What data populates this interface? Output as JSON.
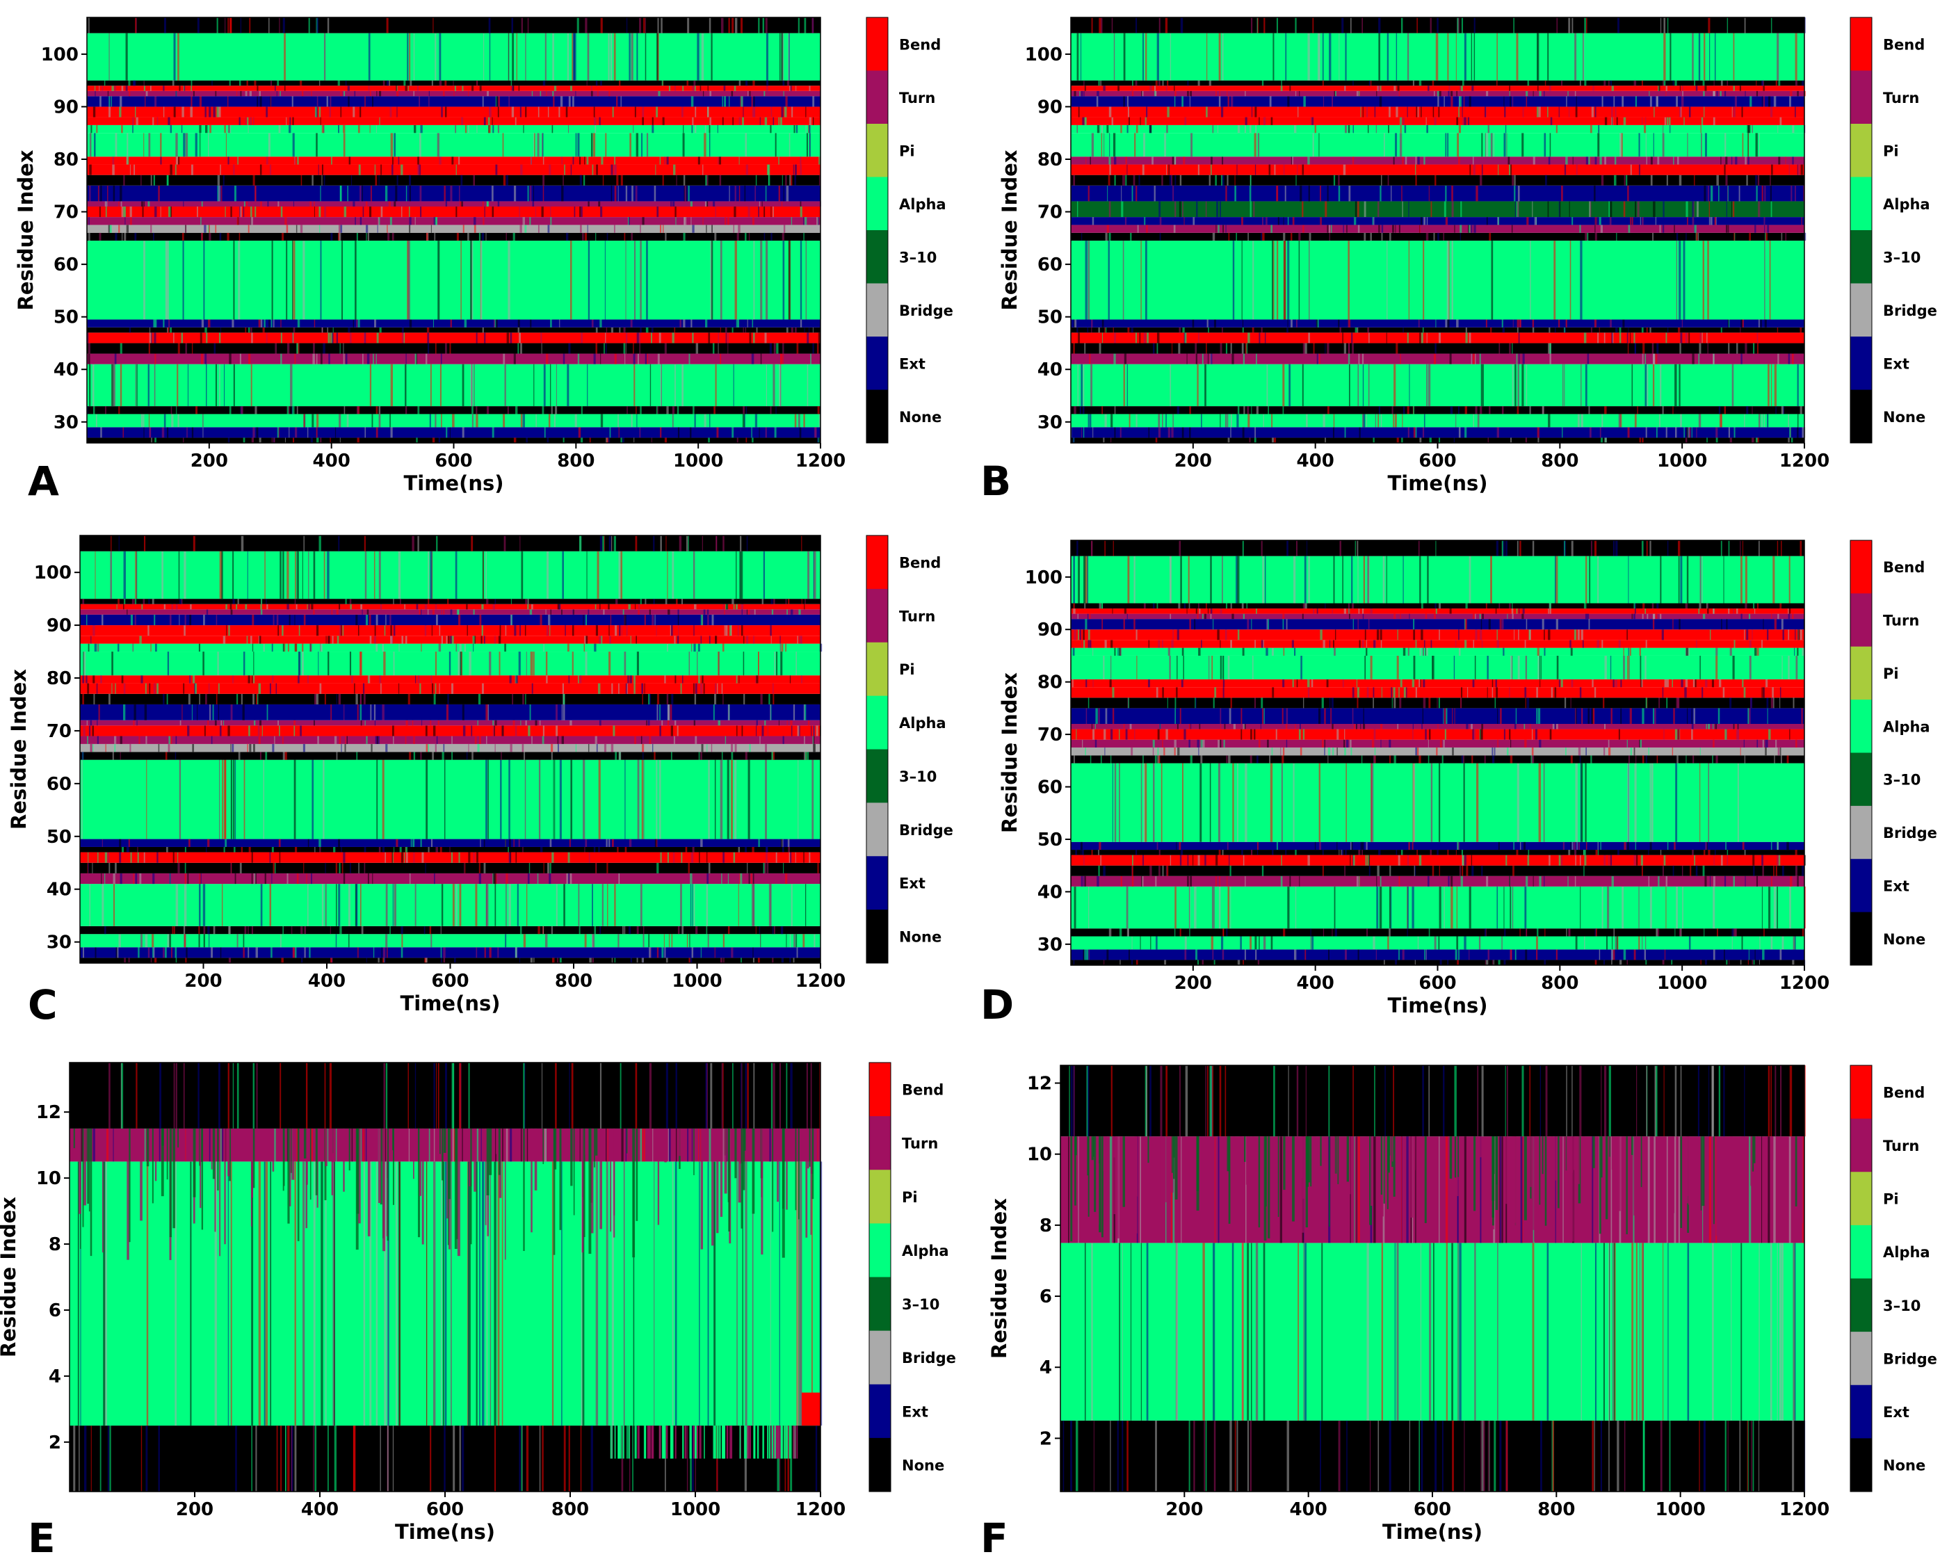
{
  "colors": {
    "Bend": "#ff0000",
    "Turn": "#a01060",
    "Pi": "#a8cc3c",
    "Alpha": "#00ff80",
    "3-10": "#006622",
    "Bridge": "#aaaaaa",
    "Ext": "#00008b",
    "None": "#000000"
  },
  "chart_data": [
    {
      "panel": "A",
      "type": "heatmap",
      "xlabel": "Time(ns)",
      "ylabel": "Residue Index",
      "xlim": [
        0,
        1200
      ],
      "ylim": [
        26,
        107
      ],
      "xticks": [
        200,
        400,
        600,
        800,
        1000,
        1200
      ],
      "yticks": [
        30,
        40,
        50,
        60,
        70,
        80,
        90,
        100
      ],
      "legend": [
        "Bend",
        "Turn",
        "Pi",
        "Alpha",
        "3-10",
        "Bridge",
        "Ext",
        "None"
      ],
      "bands": [
        [
          26,
          27,
          "None"
        ],
        [
          27,
          29,
          "Ext"
        ],
        [
          29,
          31.5,
          "Alpha"
        ],
        [
          31.5,
          33,
          "None"
        ],
        [
          33,
          41,
          "Alpha"
        ],
        [
          41,
          43,
          "Turn"
        ],
        [
          43,
          45,
          "None"
        ],
        [
          45,
          47,
          "Bend"
        ],
        [
          47,
          48,
          "None"
        ],
        [
          48,
          49.5,
          "Ext"
        ],
        [
          49.5,
          64.5,
          "Alpha"
        ],
        [
          64.5,
          66,
          "None"
        ],
        [
          66,
          67.5,
          "Bridge"
        ],
        [
          67.5,
          69,
          "Turn"
        ],
        [
          69,
          71,
          "Bend"
        ],
        [
          71,
          72,
          "Turn"
        ],
        [
          72,
          75,
          "Ext"
        ],
        [
          75,
          77,
          "None"
        ],
        [
          77,
          79,
          "Bend"
        ],
        [
          79,
          80.5,
          "Bend"
        ],
        [
          80.5,
          85,
          "Alpha"
        ],
        [
          85,
          86.5,
          "Alpha"
        ],
        [
          86.5,
          88,
          "Bend"
        ],
        [
          88,
          90,
          "Bend"
        ],
        [
          90,
          92,
          "Ext"
        ],
        [
          92,
          93,
          "Turn"
        ],
        [
          93,
          94,
          "Bend"
        ],
        [
          94,
          95,
          "None"
        ],
        [
          95,
          104,
          "Alpha"
        ],
        [
          104,
          107,
          "None"
        ]
      ]
    },
    {
      "panel": "B",
      "type": "heatmap",
      "xlabel": "Time(ns)",
      "ylabel": "Residue Index",
      "xlim": [
        0,
        1200
      ],
      "ylim": [
        26,
        107
      ],
      "xticks": [
        200,
        400,
        600,
        800,
        1000,
        1200
      ],
      "yticks": [
        30,
        40,
        50,
        60,
        70,
        80,
        90,
        100
      ],
      "legend": [
        "Bend",
        "Turn",
        "Pi",
        "Alpha",
        "3-10",
        "Bridge",
        "Ext",
        "None"
      ],
      "bands": [
        [
          26,
          27,
          "None"
        ],
        [
          27,
          29,
          "Ext"
        ],
        [
          29,
          31.5,
          "Alpha"
        ],
        [
          31.5,
          33,
          "None"
        ],
        [
          33,
          41,
          "Alpha"
        ],
        [
          41,
          43,
          "Turn"
        ],
        [
          43,
          45,
          "None"
        ],
        [
          45,
          47,
          "Bend"
        ],
        [
          47,
          48,
          "None"
        ],
        [
          48,
          49.5,
          "Ext"
        ],
        [
          49.5,
          64.5,
          "Alpha"
        ],
        [
          64.5,
          66,
          "None"
        ],
        [
          66,
          67.5,
          "Turn"
        ],
        [
          67.5,
          69,
          "Ext"
        ],
        [
          69,
          72,
          "3-10"
        ],
        [
          72,
          75,
          "Ext"
        ],
        [
          75,
          77,
          "None"
        ],
        [
          77,
          79,
          "Bend"
        ],
        [
          79,
          80.5,
          "Turn"
        ],
        [
          80.5,
          85,
          "Alpha"
        ],
        [
          85,
          86.5,
          "Alpha"
        ],
        [
          86.5,
          88,
          "Bend"
        ],
        [
          88,
          90,
          "Bend"
        ],
        [
          90,
          92,
          "Ext"
        ],
        [
          92,
          93,
          "Turn"
        ],
        [
          93,
          94,
          "Bend"
        ],
        [
          94,
          95,
          "None"
        ],
        [
          95,
          104,
          "Alpha"
        ],
        [
          104,
          107,
          "None"
        ]
      ]
    },
    {
      "panel": "C",
      "type": "heatmap",
      "xlabel": "Time(ns)",
      "ylabel": "Residue Index",
      "xlim": [
        0,
        1200
      ],
      "ylim": [
        26,
        107
      ],
      "xticks": [
        200,
        400,
        600,
        800,
        1000,
        1200
      ],
      "yticks": [
        30,
        40,
        50,
        60,
        70,
        80,
        90,
        100
      ],
      "legend": [
        "Bend",
        "Turn",
        "Pi",
        "Alpha",
        "3-10",
        "Bridge",
        "Ext",
        "None"
      ],
      "bands": [
        [
          26,
          27,
          "None"
        ],
        [
          27,
          29,
          "Ext"
        ],
        [
          29,
          31.5,
          "Alpha"
        ],
        [
          31.5,
          33,
          "None"
        ],
        [
          33,
          41,
          "Alpha"
        ],
        [
          41,
          43,
          "Turn"
        ],
        [
          43,
          45,
          "None"
        ],
        [
          45,
          47,
          "Bend"
        ],
        [
          47,
          48,
          "None"
        ],
        [
          48,
          49.5,
          "Ext"
        ],
        [
          49.5,
          64.5,
          "Alpha"
        ],
        [
          64.5,
          66,
          "None"
        ],
        [
          66,
          67.5,
          "Bridge"
        ],
        [
          67.5,
          69,
          "Turn"
        ],
        [
          69,
          71,
          "Bend"
        ],
        [
          71,
          72,
          "Turn"
        ],
        [
          72,
          75,
          "Ext"
        ],
        [
          75,
          77,
          "None"
        ],
        [
          77,
          79,
          "Bend"
        ],
        [
          79,
          80.5,
          "Bend"
        ],
        [
          80.5,
          85,
          "Alpha"
        ],
        [
          85,
          86.5,
          "Alpha"
        ],
        [
          86.5,
          88,
          "Bend"
        ],
        [
          88,
          90,
          "Bend"
        ],
        [
          90,
          92,
          "Ext"
        ],
        [
          92,
          93,
          "Turn"
        ],
        [
          93,
          94,
          "Bend"
        ],
        [
          94,
          95,
          "None"
        ],
        [
          95,
          104,
          "Alpha"
        ],
        [
          104,
          107,
          "None"
        ]
      ]
    },
    {
      "panel": "D",
      "type": "heatmap",
      "xlabel": "Time(ns)",
      "ylabel": "Residue Index",
      "xlim": [
        0,
        1200
      ],
      "ylim": [
        26,
        107
      ],
      "xticks": [
        200,
        400,
        600,
        800,
        1000,
        1200
      ],
      "yticks": [
        30,
        40,
        50,
        60,
        70,
        80,
        90,
        100
      ],
      "legend": [
        "Bend",
        "Turn",
        "Pi",
        "Alpha",
        "3-10",
        "Bridge",
        "Ext",
        "None"
      ],
      "bands": [
        [
          26,
          27,
          "None"
        ],
        [
          27,
          29,
          "Ext"
        ],
        [
          29,
          31.5,
          "Alpha"
        ],
        [
          31.5,
          33,
          "None"
        ],
        [
          33,
          41,
          "Alpha"
        ],
        [
          41,
          43,
          "Turn"
        ],
        [
          43,
          45,
          "None"
        ],
        [
          45,
          47,
          "Bend"
        ],
        [
          47,
          48,
          "None"
        ],
        [
          48,
          49.5,
          "Ext"
        ],
        [
          49.5,
          64.5,
          "Alpha"
        ],
        [
          64.5,
          66,
          "None"
        ],
        [
          66,
          67.5,
          "Bridge"
        ],
        [
          67.5,
          69,
          "Turn"
        ],
        [
          69,
          71,
          "Bend"
        ],
        [
          71,
          72,
          "Turn"
        ],
        [
          72,
          75,
          "Ext"
        ],
        [
          75,
          77,
          "None"
        ],
        [
          77,
          79,
          "Bend"
        ],
        [
          79,
          80.5,
          "Bend"
        ],
        [
          80.5,
          85,
          "Alpha"
        ],
        [
          85,
          86.5,
          "Alpha"
        ],
        [
          86.5,
          88,
          "Bend"
        ],
        [
          88,
          90,
          "Bend"
        ],
        [
          90,
          92,
          "Ext"
        ],
        [
          92,
          93,
          "Turn"
        ],
        [
          93,
          94,
          "Bend"
        ],
        [
          94,
          95,
          "None"
        ],
        [
          95,
          104,
          "Alpha"
        ],
        [
          104,
          107,
          "None"
        ]
      ]
    },
    {
      "panel": "E",
      "type": "heatmap",
      "xlabel": "Time(ns)",
      "ylabel": "Residue Index",
      "xlim": [
        0,
        1200
      ],
      "ylim": [
        0.5,
        13.5
      ],
      "xticks": [
        200,
        400,
        600,
        800,
        1000,
        1200
      ],
      "yticks": [
        2,
        4,
        6,
        8,
        10,
        12
      ],
      "legend": [
        "Bend",
        "Turn",
        "Pi",
        "Alpha",
        "3-10",
        "Bridge",
        "Ext",
        "None"
      ],
      "bands": [
        [
          0.5,
          2.5,
          "None"
        ],
        [
          2.5,
          10.5,
          "Alpha"
        ],
        [
          10.5,
          11.5,
          "Turn"
        ],
        [
          11.5,
          13.5,
          "None"
        ]
      ]
    },
    {
      "panel": "F",
      "type": "heatmap",
      "xlabel": "Time(ns)",
      "ylabel": "Residue Index",
      "xlim": [
        0,
        1200
      ],
      "ylim": [
        0.5,
        12.5
      ],
      "xticks": [
        200,
        400,
        600,
        800,
        1000,
        1200
      ],
      "yticks": [
        2,
        4,
        6,
        8,
        10,
        12
      ],
      "legend": [
        "Bend",
        "Turn",
        "Pi",
        "Alpha",
        "3-10",
        "Bridge",
        "Ext",
        "None"
      ],
      "bands": [
        [
          0.5,
          2.5,
          "None"
        ],
        [
          2.5,
          7.5,
          "Alpha"
        ],
        [
          7.5,
          10.5,
          "Turn"
        ],
        [
          10.5,
          12.5,
          "None"
        ]
      ]
    }
  ]
}
